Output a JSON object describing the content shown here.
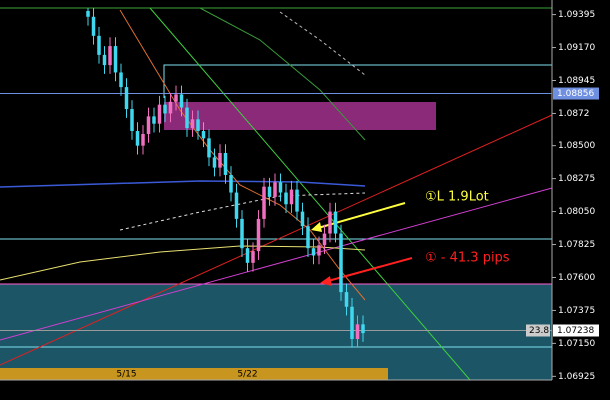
{
  "chart_data": {
    "type": "candlestick",
    "categories": [
      null,
      null,
      null,
      null,
      null,
      null,
      null,
      "5/15",
      null,
      null,
      null,
      null,
      null,
      null,
      null,
      null,
      null,
      null,
      null,
      null,
      null,
      null,
      null,
      null,
      null,
      null,
      null,
      null,
      null,
      "5/22",
      null,
      null,
      null,
      null,
      null,
      null,
      null,
      null,
      null,
      null,
      null,
      null,
      null,
      null,
      null,
      null,
      null,
      null,
      null,
      null,
      null
    ],
    "open": [
      1.0942,
      1.0938,
      1.0925,
      1.0912,
      1.0905,
      1.0918,
      1.09,
      1.089,
      1.0875,
      1.086,
      1.085,
      1.0858,
      1.087,
      1.0865,
      1.0878,
      1.0872,
      1.088,
      1.0885,
      1.0876,
      1.0862,
      1.0868,
      1.086,
      1.0855,
      1.0842,
      1.0835,
      1.0845,
      1.083,
      1.0818,
      1.08,
      1.078,
      1.077,
      1.0778,
      1.08,
      1.0822,
      1.0815,
      1.0825,
      1.0818,
      1.081,
      1.082,
      1.0805,
      1.0795,
      1.078,
      1.0775,
      1.0782,
      1.079,
      1.0805,
      1.079,
      1.075,
      1.074,
      1.0718,
      1.0728
    ],
    "high": [
      1.0944,
      1.0944,
      1.0931,
      1.0918,
      1.0924,
      1.0924,
      1.0906,
      1.0896,
      1.0881,
      1.0866,
      1.0864,
      1.0876,
      1.0876,
      1.0884,
      1.0884,
      1.0886,
      1.0891,
      1.0891,
      1.0882,
      1.0874,
      1.0874,
      1.0866,
      1.0861,
      1.0848,
      1.0851,
      1.0851,
      1.0836,
      1.0824,
      1.0806,
      1.0786,
      1.0784,
      1.0806,
      1.0828,
      1.0828,
      1.0831,
      1.0831,
      1.0824,
      1.0826,
      1.0826,
      1.0811,
      1.0801,
      1.0786,
      1.0788,
      1.0796,
      1.0811,
      1.0811,
      1.0796,
      1.0756,
      1.0746,
      1.0734,
      1.0734
    ],
    "low": [
      1.0932,
      1.0919,
      1.0906,
      1.0899,
      1.0899,
      1.0894,
      1.0884,
      1.0869,
      1.0854,
      1.0844,
      1.0844,
      1.0852,
      1.0859,
      1.0859,
      1.0866,
      1.0866,
      1.0874,
      1.087,
      1.0856,
      1.0856,
      1.0854,
      1.0849,
      1.0836,
      1.0829,
      1.0829,
      1.0824,
      1.0812,
      1.0794,
      1.0774,
      1.0764,
      1.0764,
      1.0772,
      1.0794,
      1.0809,
      1.0809,
      1.0812,
      1.0804,
      1.0804,
      1.0799,
      1.0789,
      1.0774,
      1.0769,
      1.0769,
      1.0776,
      1.0784,
      1.0784,
      1.0744,
      1.0734,
      1.0712,
      1.0712,
      1.0716
    ],
    "close": [
      1.0938,
      1.0925,
      1.0912,
      1.0905,
      1.0918,
      1.09,
      1.089,
      1.0875,
      1.086,
      1.085,
      1.0858,
      1.087,
      1.0865,
      1.0878,
      1.0872,
      1.088,
      1.0885,
      1.0876,
      1.0862,
      1.0868,
      1.086,
      1.0855,
      1.0842,
      1.0835,
      1.0845,
      1.083,
      1.0818,
      1.08,
      1.078,
      1.077,
      1.0778,
      1.08,
      1.0822,
      1.0815,
      1.0825,
      1.0818,
      1.081,
      1.082,
      1.0805,
      1.0795,
      1.078,
      1.0775,
      1.0782,
      1.079,
      1.0805,
      1.079,
      1.075,
      1.074,
      1.0718,
      1.0728,
      1.0722
    ],
    "up_color": "#f06fc0",
    "down_color": "#3fd8ef",
    "ylim": [
      1.069,
      1.0944
    ],
    "yticks": [
      1.09395,
      {
        "value": 1.0917,
        "label": "1.09170"
      },
      1.08945,
      1.0872,
      {
        "value": 1.085,
        "label": "1.08500"
      },
      1.08275,
      {
        "value": 1.0805,
        "label": "1.08050"
      },
      1.07825,
      {
        "value": 1.076,
        "label": "1.07600"
      },
      1.07375,
      {
        "value": 1.0715,
        "label": "1.07150"
      },
      1.06925
    ],
    "price_lines": [
      {
        "value": 1.08856,
        "color": "#6f8fe0"
      },
      {
        "value": 1.07238,
        "color": "#9a9a9a"
      }
    ],
    "timer_label": "23.8",
    "annotations": [
      {
        "text": "①L 1.9Lot",
        "color": "#ffff40"
      },
      {
        "text": "① - 41.3 pips",
        "color": "#ff2020"
      }
    ]
  }
}
